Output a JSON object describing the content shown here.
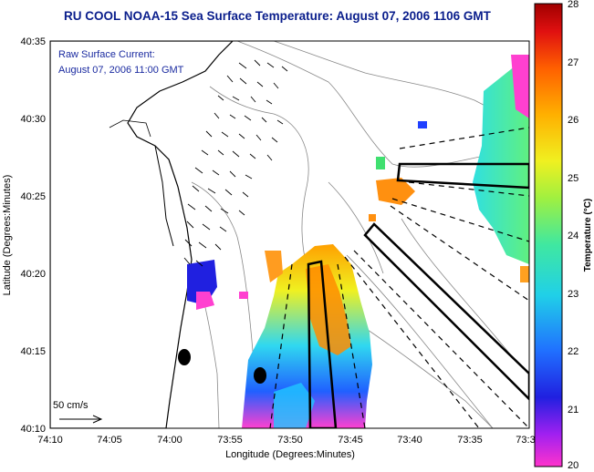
{
  "title": "RU COOL  NOAA-15  Sea Surface Temperature:  August 07, 2006 1106 GMT",
  "annotation": {
    "line1": "Raw Surface Current:",
    "line2": "August 07, 2006 11:00 GMT"
  },
  "scale_label": "50 cm/s",
  "axes": {
    "xlabel": "Longitude (Degrees:Minutes)",
    "ylabel": "Latitude (Degrees:Minutes)",
    "x_ticks": [
      "74:10",
      "74:05",
      "74:00",
      "73:55",
      "73:50",
      "73:45",
      "73:40",
      "73:35",
      "73:3"
    ],
    "y_ticks": [
      "40:35",
      "40:30",
      "40:25",
      "40:20",
      "40:15",
      "40:10"
    ]
  },
  "colorbar": {
    "label": "Temperature (°C)",
    "min": 20,
    "max": 28,
    "ticks": [
      "28",
      "27",
      "26",
      "25",
      "24",
      "23",
      "22",
      "21",
      "20"
    ]
  },
  "colors": {
    "title": "#0a1e8c",
    "annotation": "#1a2aa0"
  }
}
